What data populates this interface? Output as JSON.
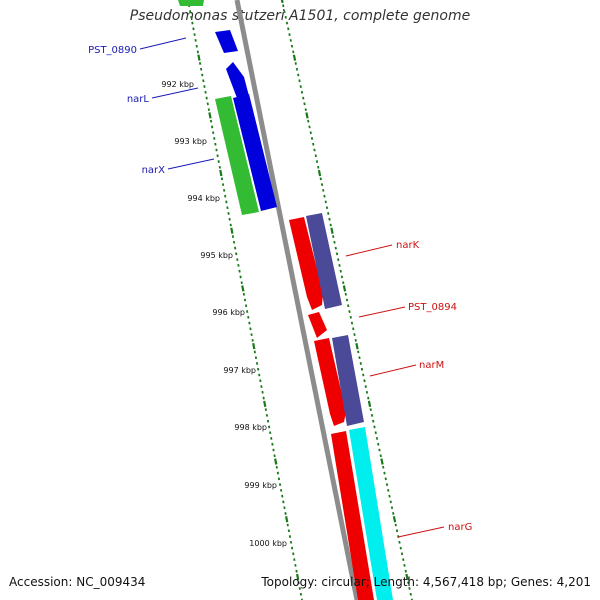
{
  "title": "Pseudomonas stutzeri A1501, complete genome",
  "footer": {
    "accession": "Accession: NC_009434",
    "summary": "Topology: circular; Length: 4,567,418 bp; Genes: 4,201"
  },
  "colors": {
    "backbone": "#8c8c8c",
    "ticks": "#1a7a1a",
    "plus_label": "#1a1ab4",
    "minus_label": "#cc1111",
    "green_feature": "#33bb33",
    "blue_feature": "#0000dd",
    "red_feature": "#ee0000",
    "slate_feature": "#4a4a99",
    "cyan_feature": "#00eeee"
  },
  "kbp_ticks": [
    {
      "kbp": 992,
      "label": "992 kbp"
    },
    {
      "kbp": 993,
      "label": "993 kbp"
    },
    {
      "kbp": 994,
      "label": "994 kbp"
    },
    {
      "kbp": 995,
      "label": "995 kbp"
    },
    {
      "kbp": 996,
      "label": "996 kbp"
    },
    {
      "kbp": 997,
      "label": "997 kbp"
    },
    {
      "kbp": 998,
      "label": "998 kbp"
    },
    {
      "kbp": 999,
      "label": "999 kbp"
    },
    {
      "kbp": 1000,
      "label": "1000 kbp"
    }
  ],
  "gene_labels": [
    {
      "name": "PST_0890",
      "strand": "plus"
    },
    {
      "name": "narL",
      "strand": "plus"
    },
    {
      "name": "narX",
      "strand": "plus"
    },
    {
      "name": "narK",
      "strand": "minus"
    },
    {
      "name": "PST_0894",
      "strand": "minus"
    },
    {
      "name": "narM",
      "strand": "minus"
    },
    {
      "name": "narG",
      "strand": "minus"
    }
  ]
}
